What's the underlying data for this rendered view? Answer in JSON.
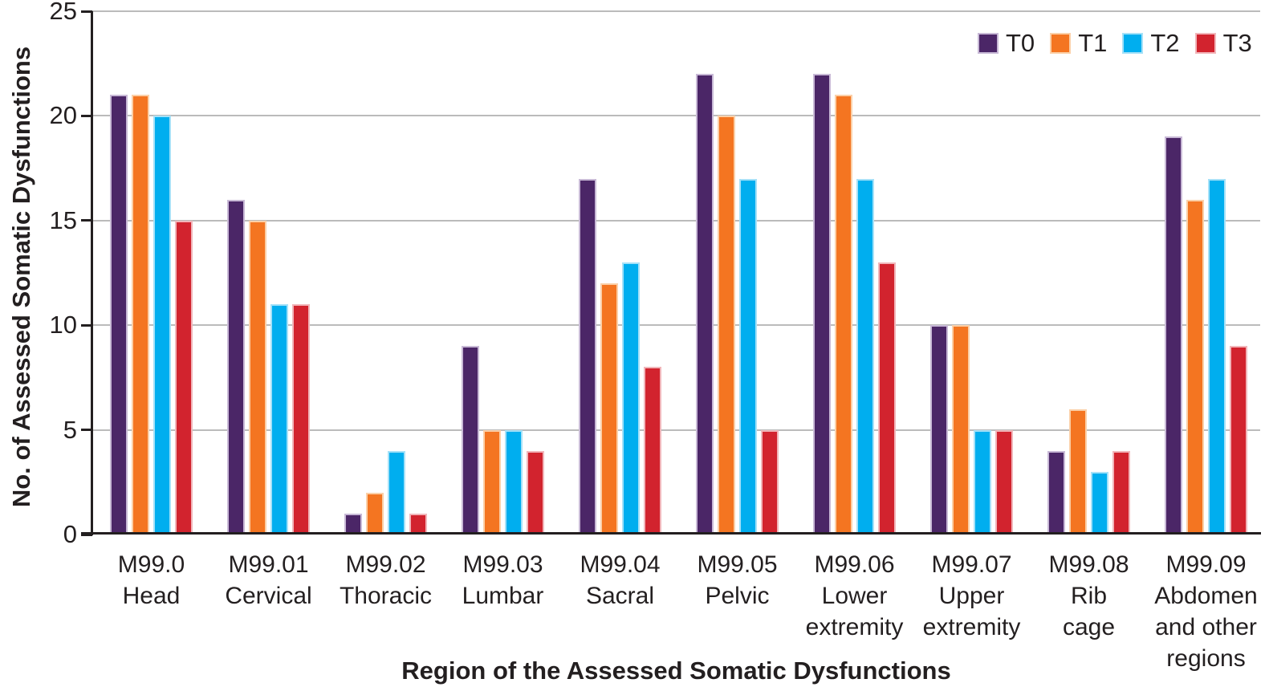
{
  "chart_data": {
    "type": "bar",
    "title": "",
    "xlabel": "Region of the Assessed Somatic Dysfunctions",
    "ylabel": "No. of Assessed Somatic Dysfunctions",
    "ylim": [
      0,
      25
    ],
    "yticks": [
      0,
      5,
      10,
      15,
      20,
      25
    ],
    "grid": true,
    "legend_position": "top-right",
    "categories": [
      {
        "code": "M99.0",
        "name_lines": [
          "Head"
        ]
      },
      {
        "code": "M99.01",
        "name_lines": [
          "Cervical"
        ]
      },
      {
        "code": "M99.02",
        "name_lines": [
          "Thoracic"
        ]
      },
      {
        "code": "M99.03",
        "name_lines": [
          "Lumbar"
        ]
      },
      {
        "code": "M99.04",
        "name_lines": [
          "Sacral"
        ]
      },
      {
        "code": "M99.05",
        "name_lines": [
          "Pelvic"
        ]
      },
      {
        "code": "M99.06",
        "name_lines": [
          "Lower",
          "extremity"
        ]
      },
      {
        "code": "M99.07",
        "name_lines": [
          "Upper",
          "extremity"
        ]
      },
      {
        "code": "M99.08",
        "name_lines": [
          "Rib",
          "cage"
        ]
      },
      {
        "code": "M99.09",
        "name_lines": [
          "Abdomen",
          "and other",
          "regions"
        ]
      }
    ],
    "series": [
      {
        "name": "T0",
        "color": "#4B2667",
        "border_color": "#C8B9D6",
        "values": [
          21,
          16,
          1,
          9,
          17,
          22,
          22,
          10,
          4,
          19
        ]
      },
      {
        "name": "T1",
        "color": "#F47521",
        "border_color": "#FBD0A8",
        "values": [
          21,
          15,
          2,
          5,
          12,
          20,
          21,
          10,
          6,
          16
        ]
      },
      {
        "name": "T2",
        "color": "#00AEEF",
        "border_color": "#A5E1F8",
        "values": [
          20,
          11,
          4,
          5,
          13,
          17,
          17,
          5,
          3,
          17
        ]
      },
      {
        "name": "T3",
        "color": "#D2232E",
        "border_color": "#F1B6BA",
        "values": [
          15,
          11,
          1,
          4,
          8,
          5,
          13,
          5,
          4,
          9
        ]
      }
    ],
    "colors": {
      "axis": "#231F20",
      "grid": "#BBBBBB",
      "text": "#231F20"
    }
  }
}
